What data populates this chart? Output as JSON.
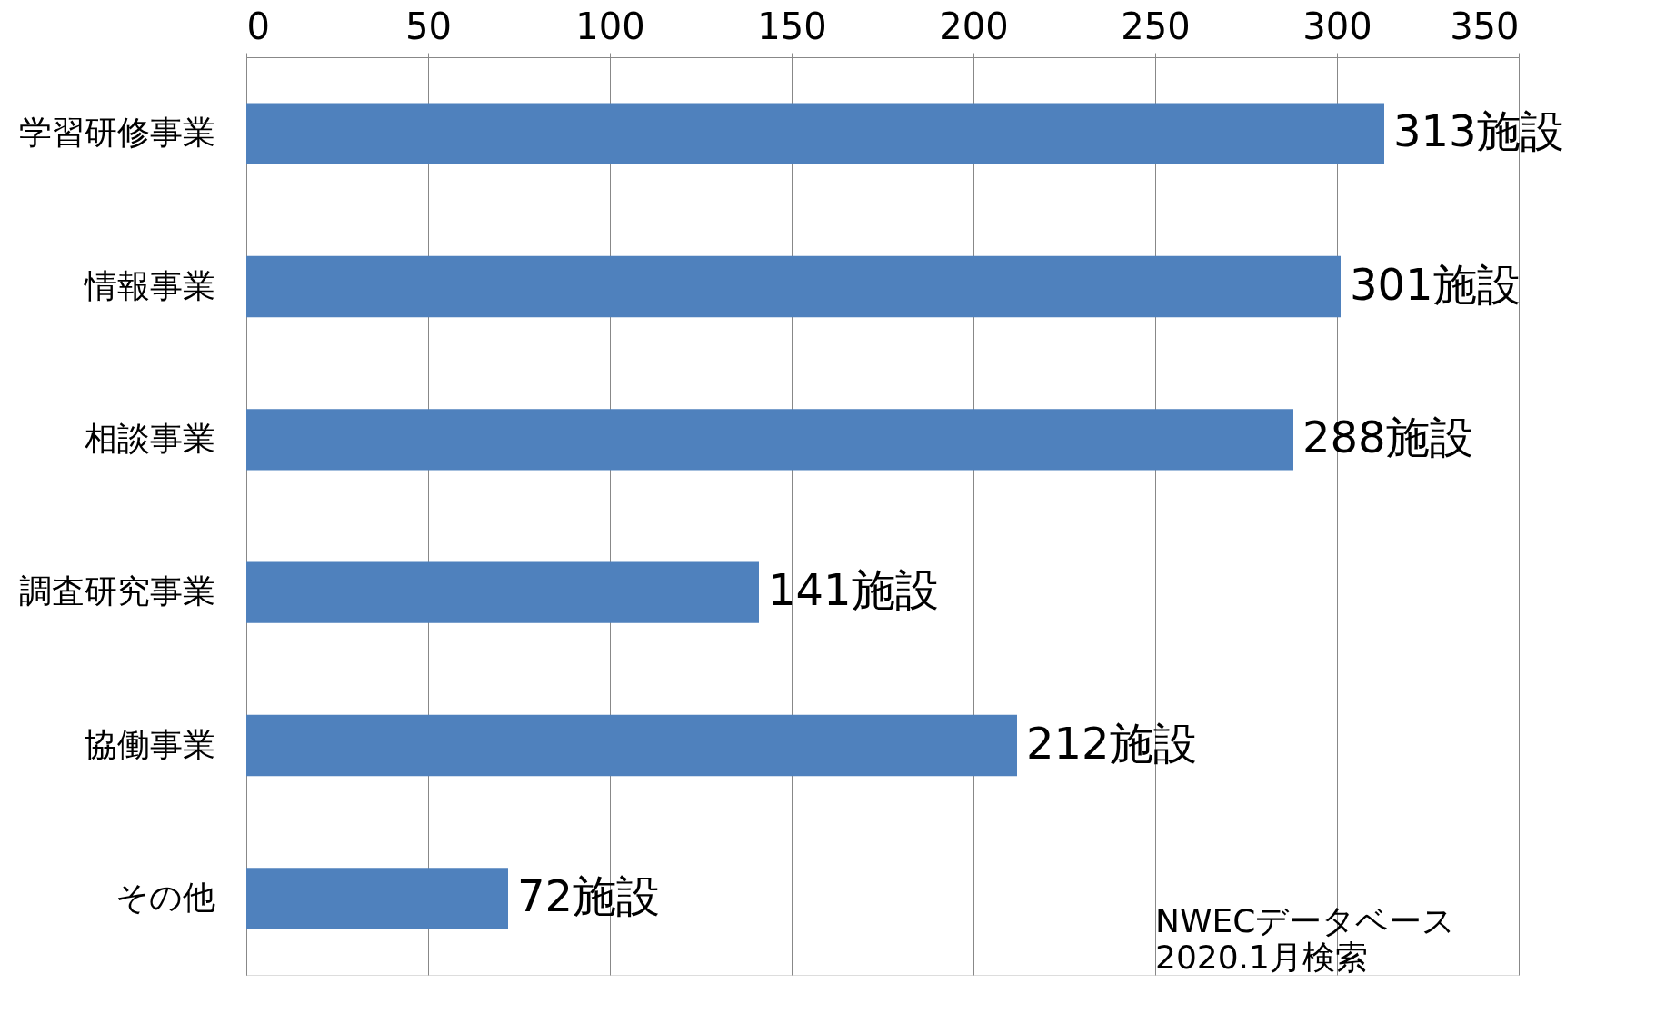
{
  "chart_data": {
    "type": "bar",
    "orientation": "horizontal",
    "categories": [
      "学習研修事業",
      "情報事業",
      "相談事業",
      "調査研究事業",
      "協働事業",
      "その他"
    ],
    "values": [
      313,
      301,
      288,
      141,
      212,
      72
    ],
    "value_labels": [
      "313施設",
      "301施設",
      "288施設",
      "141施設",
      "212施設",
      "72施設"
    ],
    "color": "#4f81bd",
    "xlim": [
      0,
      350
    ],
    "xticks": [
      0,
      50,
      100,
      150,
      200,
      250,
      300,
      350
    ],
    "grid": "x",
    "annotations": [
      "NWECデータベース",
      "2020.1月検索"
    ]
  }
}
